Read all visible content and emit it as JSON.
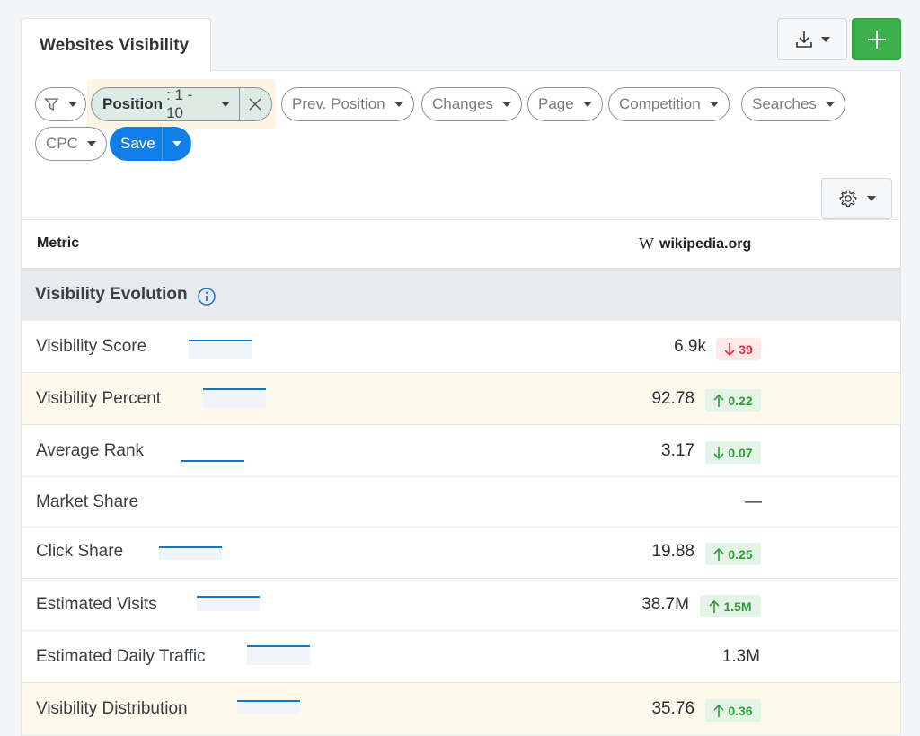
{
  "tab": {
    "title": "Websites Visibility"
  },
  "filters": {
    "position": {
      "label": "Position",
      "value": ": 1 - 10"
    },
    "pills": [
      "Prev. Position",
      "Changes",
      "Page",
      "Competition",
      "Searches",
      "CPC"
    ],
    "save_label": "Save"
  },
  "table": {
    "metric_header": "Metric",
    "site": {
      "icon_glyph": "W",
      "name": "wikipedia.org"
    },
    "section_title": "Visibility Evolution",
    "rows": [
      {
        "name": "Visibility Score",
        "value": "6.9k",
        "change": "39",
        "direction": "down",
        "color": "red"
      },
      {
        "name": "Visibility Percent",
        "value": "92.78",
        "change": "0.22",
        "direction": "up",
        "color": "green"
      },
      {
        "name": "Average Rank",
        "value": "3.17",
        "change": "0.07",
        "direction": "down",
        "color": "green"
      },
      {
        "name": "Market Share",
        "value": "—"
      },
      {
        "name": "Click Share",
        "value": "19.88",
        "change": "0.25",
        "direction": "up",
        "color": "green"
      },
      {
        "name": "Estimated Visits",
        "value": "38.7M",
        "change": "1.5M",
        "direction": "up",
        "color": "green"
      },
      {
        "name": "Estimated Daily Traffic",
        "value": "1.3M"
      },
      {
        "name": "Visibility Distribution",
        "value": "35.76",
        "change": "0.36",
        "direction": "up",
        "color": "green"
      }
    ]
  },
  "colors": {
    "accent": "#127ee8",
    "add": "#3ab04a",
    "up": "#2e9b3d",
    "down": "#d6334b",
    "highlight": "#fef9ea"
  }
}
